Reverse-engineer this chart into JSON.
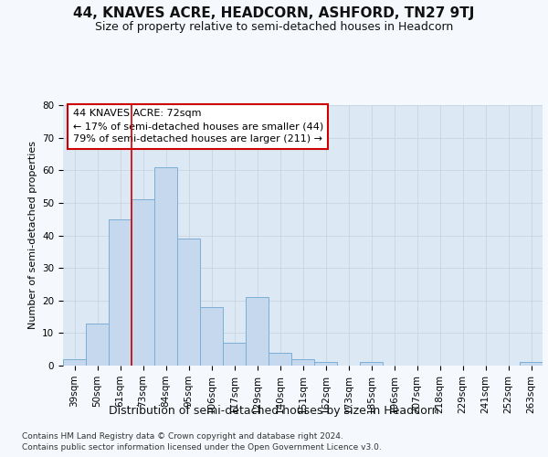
{
  "title": "44, KNAVES ACRE, HEADCORN, ASHFORD, TN27 9TJ",
  "subtitle": "Size of property relative to semi-detached houses in Headcorn",
  "xlabel": "Distribution of semi-detached houses by size in Headcorn",
  "ylabel": "Number of semi-detached properties",
  "categories": [
    "39sqm",
    "50sqm",
    "61sqm",
    "73sqm",
    "84sqm",
    "95sqm",
    "106sqm",
    "117sqm",
    "129sqm",
    "140sqm",
    "151sqm",
    "162sqm",
    "173sqm",
    "185sqm",
    "196sqm",
    "207sqm",
    "218sqm",
    "229sqm",
    "241sqm",
    "252sqm",
    "263sqm"
  ],
  "values": [
    2,
    13,
    45,
    51,
    61,
    39,
    18,
    7,
    21,
    4,
    2,
    1,
    0,
    1,
    0,
    0,
    0,
    0,
    0,
    0,
    1
  ],
  "bar_color": "#c5d8ee",
  "bar_edge_color": "#7bafd4",
  "annotation_line1": "44 KNAVES ACRE: 72sqm",
  "annotation_line2": "← 17% of semi-detached houses are smaller (44)",
  "annotation_line3": "79% of semi-detached houses are larger (211) →",
  "annotation_box_facecolor": "#ffffff",
  "annotation_box_edgecolor": "#cc0000",
  "red_line_bar_index": 3,
  "ylim": [
    0,
    80
  ],
  "yticks": [
    0,
    10,
    20,
    30,
    40,
    50,
    60,
    70,
    80
  ],
  "grid_color": "#c8d4e0",
  "plot_bg_color": "#dce8f4",
  "fig_bg_color": "#f5f8fc",
  "title_fontsize": 11,
  "subtitle_fontsize": 9,
  "ylabel_fontsize": 8,
  "xlabel_fontsize": 9,
  "tick_fontsize": 7.5,
  "annotation_fontsize": 8,
  "footer_fontsize": 6.5,
  "footer_line1": "Contains HM Land Registry data © Crown copyright and database right 2024.",
  "footer_line2": "Contains public sector information licensed under the Open Government Licence v3.0."
}
